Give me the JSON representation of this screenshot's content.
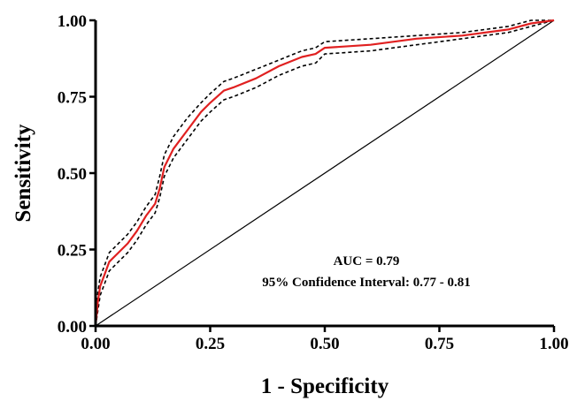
{
  "chart_data": {
    "type": "line",
    "title": "",
    "xlabel": "1 - Specificity",
    "ylabel": "Sensitivity",
    "xlim": [
      0,
      1
    ],
    "ylim": [
      0,
      1
    ],
    "x_ticks": [
      "0.00",
      "0.25",
      "0.50",
      "0.75",
      "1.00"
    ],
    "y_ticks": [
      "0.00",
      "0.25",
      "0.50",
      "0.75",
      "1.00"
    ],
    "grid": false,
    "annotations": [
      "AUC = 0.79",
      "95% Confidence Interval: 0.77 - 0.81"
    ],
    "series": [
      {
        "style": "solid",
        "color": "#e02020",
        "x": [
          0,
          0.005,
          0.01,
          0.02,
          0.03,
          0.05,
          0.07,
          0.09,
          0.11,
          0.13,
          0.14,
          0.15,
          0.17,
          0.2,
          0.23,
          0.25,
          0.28,
          0.3,
          0.35,
          0.4,
          0.45,
          0.48,
          0.5,
          0.6,
          0.7,
          0.8,
          0.9,
          0.95,
          1.0
        ],
        "y": [
          0,
          0.08,
          0.13,
          0.17,
          0.21,
          0.24,
          0.27,
          0.31,
          0.36,
          0.4,
          0.45,
          0.52,
          0.58,
          0.64,
          0.7,
          0.73,
          0.77,
          0.78,
          0.81,
          0.85,
          0.88,
          0.89,
          0.91,
          0.92,
          0.94,
          0.95,
          0.97,
          0.99,
          1.0
        ]
      },
      {
        "style": "dashed",
        "color": "#000000",
        "x": [
          0,
          0.005,
          0.01,
          0.02,
          0.03,
          0.05,
          0.07,
          0.09,
          0.11,
          0.13,
          0.14,
          0.15,
          0.17,
          0.2,
          0.23,
          0.25,
          0.28,
          0.3,
          0.35,
          0.4,
          0.45,
          0.48,
          0.5,
          0.6,
          0.7,
          0.8,
          0.9,
          0.95,
          1.0
        ],
        "y": [
          0,
          0.11,
          0.16,
          0.2,
          0.24,
          0.27,
          0.3,
          0.34,
          0.39,
          0.43,
          0.49,
          0.56,
          0.62,
          0.68,
          0.73,
          0.76,
          0.8,
          0.81,
          0.84,
          0.87,
          0.9,
          0.91,
          0.93,
          0.94,
          0.95,
          0.96,
          0.98,
          1.0,
          1.0
        ]
      },
      {
        "style": "dashed",
        "color": "#000000",
        "x": [
          0,
          0.005,
          0.01,
          0.02,
          0.03,
          0.05,
          0.07,
          0.09,
          0.11,
          0.13,
          0.14,
          0.15,
          0.17,
          0.2,
          0.23,
          0.25,
          0.28,
          0.3,
          0.35,
          0.4,
          0.45,
          0.48,
          0.5,
          0.6,
          0.7,
          0.8,
          0.9,
          0.95,
          1.0
        ],
        "y": [
          0,
          0.05,
          0.1,
          0.14,
          0.18,
          0.21,
          0.24,
          0.28,
          0.33,
          0.37,
          0.42,
          0.49,
          0.55,
          0.61,
          0.67,
          0.7,
          0.74,
          0.75,
          0.78,
          0.82,
          0.85,
          0.86,
          0.89,
          0.9,
          0.92,
          0.94,
          0.96,
          0.98,
          1.0
        ]
      },
      {
        "style": "reference",
        "color": "#000000",
        "x": [
          0,
          1
        ],
        "y": [
          0,
          1
        ]
      }
    ]
  }
}
